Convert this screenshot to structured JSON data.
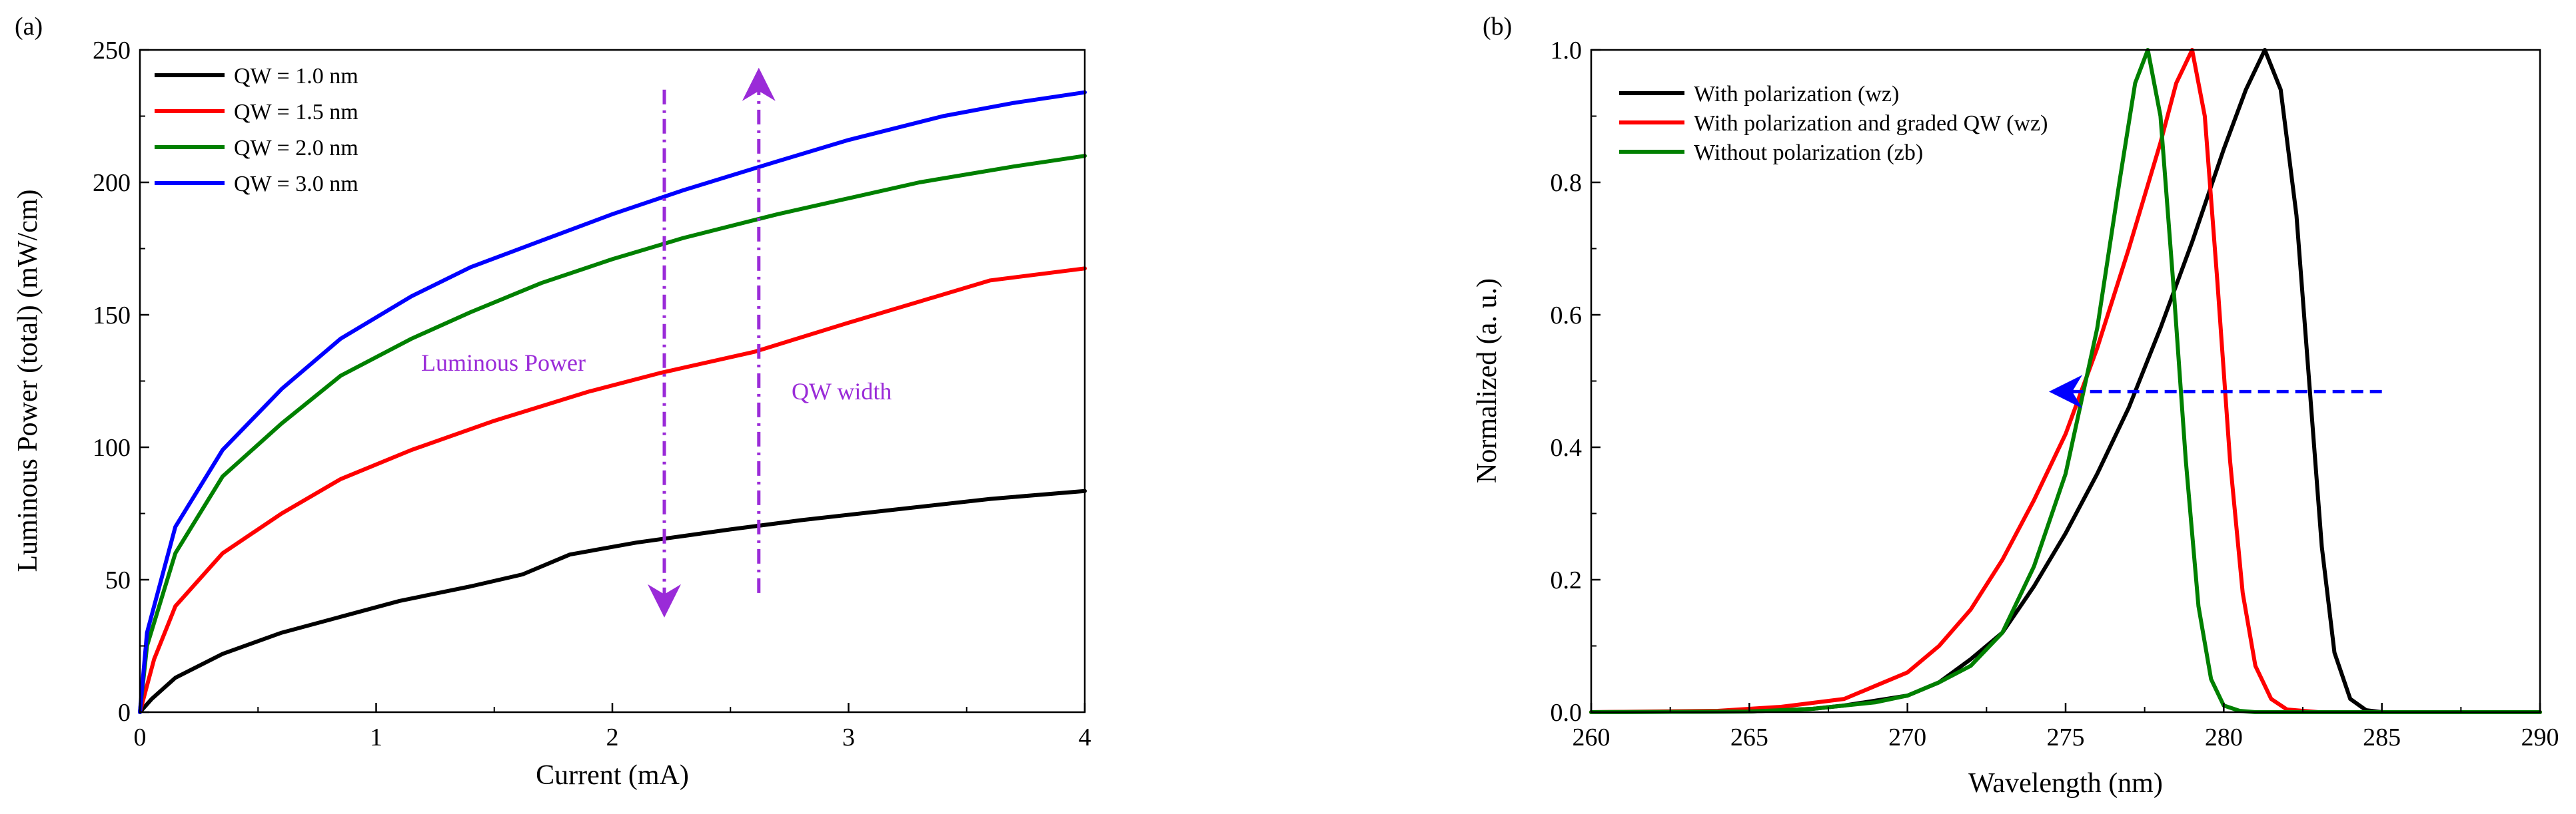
{
  "chart_data": [
    {
      "panel": "(a)",
      "type": "line",
      "xlabel": "Current (mA)",
      "ylabel": "Luminous Power (total) (mW/cm)",
      "xlim": [
        0,
        4
      ],
      "ylim": [
        0,
        250
      ],
      "xticks": [
        0,
        1,
        2,
        3,
        4
      ],
      "yticks": [
        0,
        50,
        100,
        150,
        200,
        250
      ],
      "legend_position": "top-left",
      "series": [
        {
          "name": "QW = 1.0 nm",
          "color": "#000000",
          "points": [
            [
              0,
              0
            ],
            [
              0.05,
              5
            ],
            [
              0.15,
              13
            ],
            [
              0.35,
              22
            ],
            [
              0.6,
              30
            ],
            [
              0.85,
              36
            ],
            [
              1.1,
              42
            ],
            [
              1.4,
              47.5
            ],
            [
              1.62,
              52
            ],
            [
              1.82,
              59.5
            ],
            [
              2.1,
              64
            ],
            [
              2.5,
              69
            ],
            [
              2.8,
              72.5
            ],
            [
              3.2,
              76.5
            ],
            [
              3.6,
              80.5
            ],
            [
              4.0,
              83.5
            ]
          ]
        },
        {
          "name": "QW = 1.5 nm",
          "color": "#ff0000",
          "points": [
            [
              0,
              0
            ],
            [
              0.03,
              10
            ],
            [
              0.06,
              20
            ],
            [
              0.15,
              40
            ],
            [
              0.35,
              60
            ],
            [
              0.6,
              75
            ],
            [
              0.85,
              88
            ],
            [
              1.15,
              99
            ],
            [
              1.5,
              110
            ],
            [
              1.9,
              121
            ],
            [
              2.2,
              128
            ],
            [
              2.6,
              136
            ],
            [
              3.0,
              147
            ],
            [
              3.3,
              155
            ],
            [
              3.6,
              163
            ],
            [
              4.0,
              167.5
            ]
          ]
        },
        {
          "name": "QW = 2.0 nm",
          "color": "#008000",
          "points": [
            [
              0,
              0
            ],
            [
              0.03,
              25
            ],
            [
              0.15,
              60
            ],
            [
              0.35,
              89
            ],
            [
              0.6,
              109
            ],
            [
              0.85,
              127
            ],
            [
              1.15,
              141
            ],
            [
              1.4,
              151
            ],
            [
              1.7,
              162
            ],
            [
              2.0,
              171
            ],
            [
              2.3,
              179
            ],
            [
              2.7,
              188
            ],
            [
              3.0,
              194
            ],
            [
              3.3,
              200
            ],
            [
              3.7,
              206
            ],
            [
              4.0,
              210
            ]
          ]
        },
        {
          "name": "QW = 3.0 nm",
          "color": "#0000ff",
          "points": [
            [
              0,
              0
            ],
            [
              0.03,
              30
            ],
            [
              0.15,
              70
            ],
            [
              0.35,
              99
            ],
            [
              0.6,
              122
            ],
            [
              0.85,
              141
            ],
            [
              1.15,
              157
            ],
            [
              1.4,
              168
            ],
            [
              1.7,
              178
            ],
            [
              2.0,
              188
            ],
            [
              2.3,
              197
            ],
            [
              2.7,
              208
            ],
            [
              3.0,
              216
            ],
            [
              3.4,
              225
            ],
            [
              3.7,
              230
            ],
            [
              4.0,
              234
            ]
          ]
        }
      ],
      "annotations": [
        {
          "text": "Luminous Power",
          "color": "#9a2bd8"
        },
        {
          "text": "QW width",
          "color": "#9a2bd8"
        }
      ],
      "arrows": [
        {
          "x": 2.22,
          "from": 235,
          "to": 42,
          "color": "#9a2bd8",
          "style": "dash-dot"
        },
        {
          "x": 2.62,
          "from": 45,
          "to": 237,
          "color": "#9a2bd8",
          "style": "dash-dot"
        }
      ]
    },
    {
      "panel": "(b)",
      "type": "line",
      "xlabel": "Wavelength (nm)",
      "ylabel": "Normalized (a. u.)",
      "xlim": [
        260,
        290
      ],
      "ylim": [
        0,
        1.0
      ],
      "xticks": [
        260,
        265,
        270,
        275,
        280,
        285,
        290
      ],
      "yticks": [
        0.0,
        0.2,
        0.4,
        0.6,
        0.8,
        1.0
      ],
      "legend_position": "top-left",
      "series": [
        {
          "name": "With polarization (wz)",
          "color": "#000000",
          "points": [
            [
              260,
              0
            ],
            [
              265,
              0.001
            ],
            [
              267,
              0.005
            ],
            [
              268,
              0.01
            ],
            [
              270,
              0.025
            ],
            [
              271,
              0.045
            ],
            [
              272,
              0.08
            ],
            [
              273,
              0.12
            ],
            [
              274,
              0.19
            ],
            [
              275,
              0.27
            ],
            [
              276,
              0.36
            ],
            [
              277,
              0.46
            ],
            [
              278,
              0.58
            ],
            [
              279,
              0.71
            ],
            [
              280,
              0.85
            ],
            [
              280.7,
              0.94
            ],
            [
              281.3,
              1.0
            ],
            [
              281.8,
              0.94
            ],
            [
              282.3,
              0.75
            ],
            [
              282.7,
              0.5
            ],
            [
              283.1,
              0.25
            ],
            [
              283.5,
              0.09
            ],
            [
              284,
              0.02
            ],
            [
              284.5,
              0.003
            ],
            [
              285,
              0
            ],
            [
              290,
              0
            ]
          ]
        },
        {
          "name": "With polarization and graded QW (wz)",
          "color": "#ff0000",
          "points": [
            [
              260,
              0
            ],
            [
              264,
              0.002
            ],
            [
              266,
              0.008
            ],
            [
              268,
              0.02
            ],
            [
              269,
              0.04
            ],
            [
              270,
              0.06
            ],
            [
              271,
              0.1
            ],
            [
              272,
              0.155
            ],
            [
              273,
              0.23
            ],
            [
              274,
              0.32
            ],
            [
              275,
              0.42
            ],
            [
              276,
              0.55
            ],
            [
              277,
              0.7
            ],
            [
              278,
              0.86
            ],
            [
              278.5,
              0.95
            ],
            [
              279,
              1.0
            ],
            [
              279.4,
              0.9
            ],
            [
              279.8,
              0.65
            ],
            [
              280.2,
              0.38
            ],
            [
              280.6,
              0.18
            ],
            [
              281,
              0.07
            ],
            [
              281.5,
              0.02
            ],
            [
              282,
              0.004
            ],
            [
              283,
              0
            ],
            [
              290,
              0
            ]
          ]
        },
        {
          "name": "Without polarization (zb)",
          "color": "#008000",
          "points": [
            [
              260,
              0
            ],
            [
              265,
              0.001
            ],
            [
              267,
              0.005
            ],
            [
              269,
              0.015
            ],
            [
              270,
              0.025
            ],
            [
              271,
              0.045
            ],
            [
              272,
              0.07
            ],
            [
              273,
              0.12
            ],
            [
              274,
              0.22
            ],
            [
              275,
              0.36
            ],
            [
              276,
              0.58
            ],
            [
              276.7,
              0.8
            ],
            [
              277.2,
              0.95
            ],
            [
              277.6,
              1.0
            ],
            [
              278,
              0.9
            ],
            [
              278.4,
              0.65
            ],
            [
              278.8,
              0.38
            ],
            [
              279.2,
              0.16
            ],
            [
              279.6,
              0.05
            ],
            [
              280,
              0.01
            ],
            [
              280.5,
              0.002
            ],
            [
              281,
              0
            ],
            [
              290,
              0
            ]
          ]
        }
      ],
      "arrows": [
        {
          "y": 0.484,
          "from": 285,
          "to": 275,
          "color": "#0000ff",
          "style": "dashed"
        }
      ]
    }
  ]
}
